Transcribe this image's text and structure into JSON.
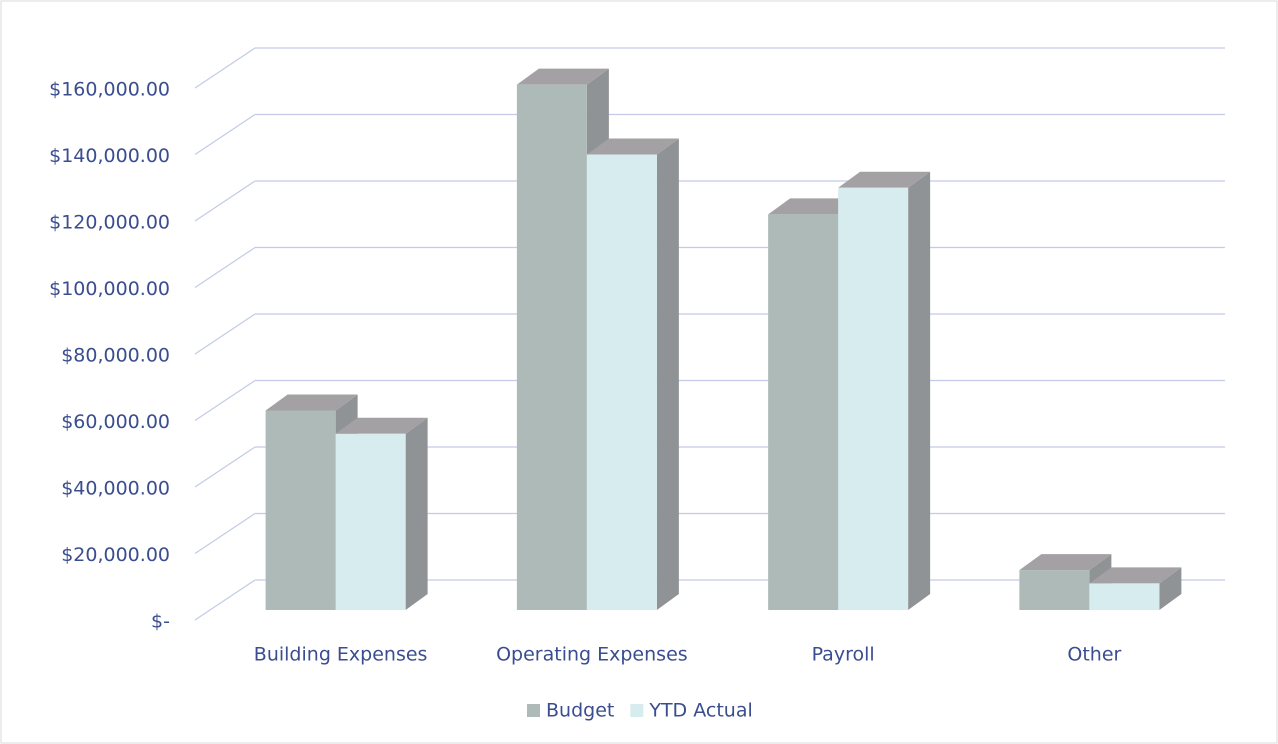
{
  "chart_data": {
    "type": "bar3d",
    "categories": [
      "Building Expenses",
      "Operating Expenses",
      "Payroll",
      "Other"
    ],
    "series": [
      {
        "name": "Budget",
        "color": "#aebab8",
        "values": [
          60000,
          158000,
          119000,
          12000
        ]
      },
      {
        "name": "YTD Actual",
        "color": "#d6ecee",
        "values": [
          53000,
          137000,
          127000,
          8000
        ]
      }
    ],
    "ylim": [
      0,
      160000
    ],
    "yticks": [
      {
        "value": 0,
        "label": "$-"
      },
      {
        "value": 20000,
        "label": "$20,000.00"
      },
      {
        "value": 40000,
        "label": "$40,000.00"
      },
      {
        "value": 60000,
        "label": "$60,000.00"
      },
      {
        "value": 80000,
        "label": "$80,000.00"
      },
      {
        "value": 100000,
        "label": "$100,000.00"
      },
      {
        "value": 120000,
        "label": "$120,000.00"
      },
      {
        "value": 140000,
        "label": "$140,000.00"
      },
      {
        "value": 160000,
        "label": "$160,000.00"
      }
    ],
    "grid": true,
    "legend": "bottom"
  }
}
